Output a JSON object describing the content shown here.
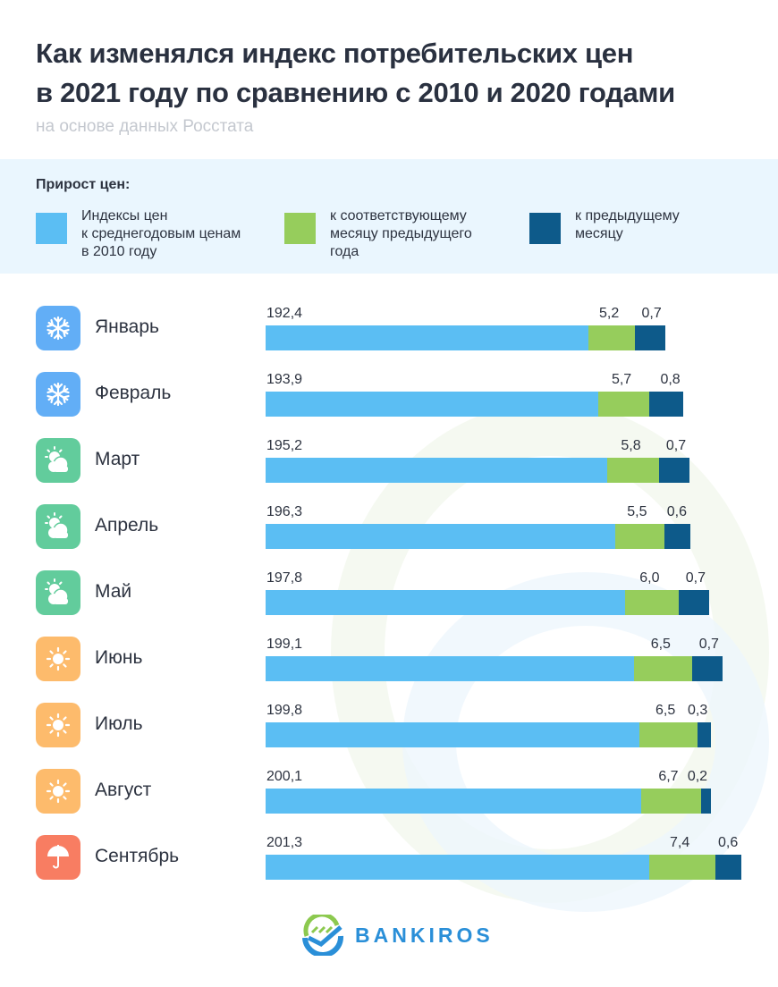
{
  "chart_data": {
    "type": "bar",
    "stacked": true,
    "orientation": "horizontal",
    "title": "Как изменялся индекс потребительских цен\nв 2021 году по сравнению с 2010 и 2020 годами",
    "subtitle": "на основе данных Росстата",
    "legend_title": "Прирост цен:",
    "legend_placement": "top",
    "categories": [
      "Январь",
      "Февраль",
      "Март",
      "Апрель",
      "Май",
      "Июнь",
      "Июль",
      "Август",
      "Сентябрь"
    ],
    "category_icons": [
      "snowflake-icon",
      "snowflake-icon",
      "sun-cloud-icon",
      "sun-cloud-icon",
      "sun-cloud-icon",
      "sun-icon",
      "sun-icon",
      "sun-icon",
      "umbrella-icon"
    ],
    "series": [
      {
        "name": "Индексы цен\nк среднегодовым ценам\nв 2010 году",
        "color": "#5bbef3",
        "values": [
          192.4,
          193.9,
          195.2,
          196.3,
          197.8,
          199.1,
          199.8,
          200.1,
          201.3
        ],
        "labels": [
          "192,4",
          "193,9",
          "195,2",
          "196,3",
          "197,8",
          "199,1",
          "199,8",
          "200,1",
          "201,3"
        ]
      },
      {
        "name": "к соответствующему\nмесяцу предыдущего\nгода",
        "color": "#96cd5c",
        "values": [
          5.2,
          5.7,
          5.8,
          5.5,
          6.0,
          6.5,
          6.5,
          6.7,
          7.4
        ],
        "labels": [
          "5,2",
          "5,7",
          "5,8",
          "5,5",
          "6,0",
          "6,5",
          "6,5",
          "6,7",
          "7,4"
        ]
      },
      {
        "name": "к предыдущему\nмесяцу",
        "color": "#0d5a8a",
        "values": [
          0.7,
          0.8,
          0.7,
          0.6,
          0.7,
          0.7,
          0.3,
          0.2,
          0.6
        ],
        "labels": [
          "0,7",
          "0,8",
          "0,7",
          "0,6",
          "0,7",
          "0,7",
          "0,3",
          "0,2",
          "0,6"
        ]
      }
    ],
    "icon_colors": {
      "snowflake-icon": "#62aef6",
      "sun-cloud-icon": "#62cc9c",
      "sun-icon": "#fdbb6c",
      "umbrella-icon": "#f87d62"
    },
    "grid": false
  },
  "brand": {
    "name": "BANKIROS"
  }
}
